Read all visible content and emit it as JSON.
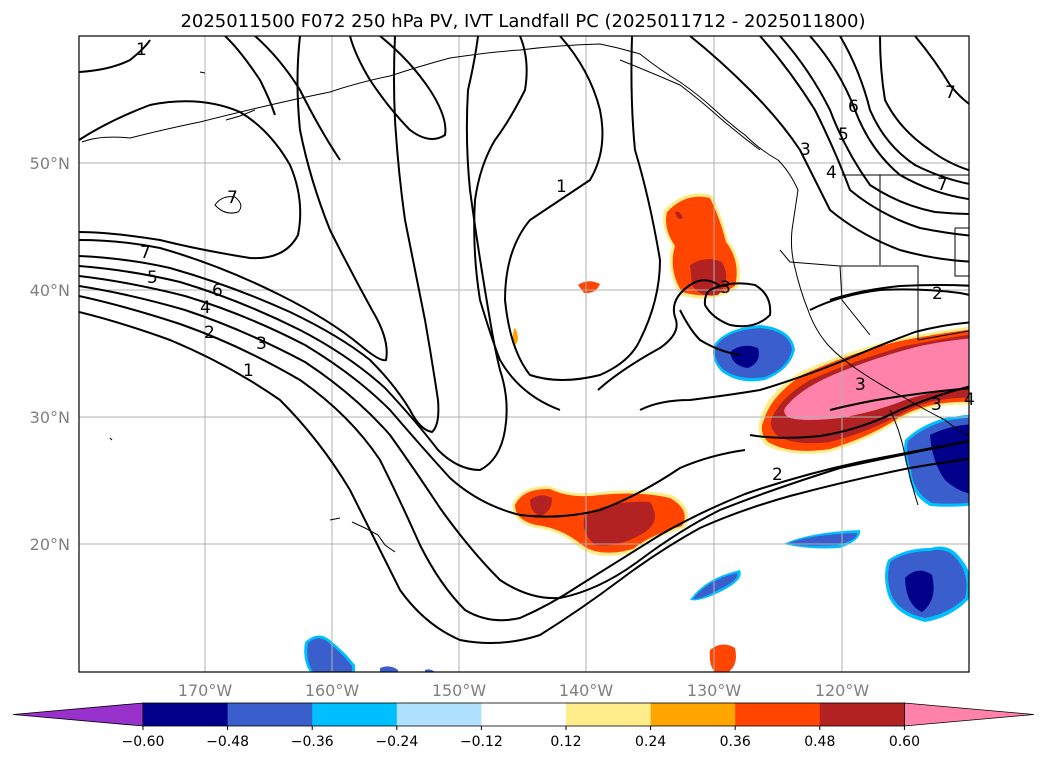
{
  "title": "2025011500 F072 250 hPa PV, IVT Landfall PC (2025011712 - 2025011800)",
  "lat_labels": [
    "50°N",
    "40°N",
    "30°N",
    "20°N"
  ],
  "lon_labels": [
    "170°W",
    "160°W",
    "150°W",
    "140°W",
    "130°W",
    "120°W"
  ],
  "colorbar": {
    "ticks": [
      "−0.60",
      "−0.48",
      "−0.36",
      "−0.24",
      "−0.12",
      "0.12",
      "0.24",
      "0.36",
      "0.48",
      "0.60"
    ],
    "colors": [
      "#9932cc",
      "#00008b",
      "#3a5fcd",
      "#00bfff",
      "#b0e2ff",
      "#ffffff",
      "#ffec8b",
      "#ffa500",
      "#ff4500",
      "#b22222",
      "#ff82ab"
    ],
    "extend": "both"
  },
  "contour_labels": [
    "1",
    "1",
    "1",
    "2",
    "2",
    "2",
    "3",
    "3",
    "3",
    "3",
    "3",
    "4",
    "4",
    "4",
    "5",
    "5",
    "6",
    "6",
    "7",
    "7",
    "7",
    "7"
  ]
}
